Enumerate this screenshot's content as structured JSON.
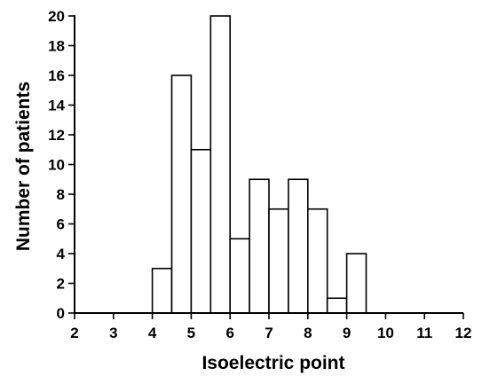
{
  "chart_data": {
    "type": "bar",
    "title": "",
    "xlabel": "Isoelectric point",
    "ylabel": "Number of patients",
    "xlim": [
      2,
      12
    ],
    "ylim": [
      0,
      20
    ],
    "x_ticks": [
      2,
      3,
      4,
      5,
      6,
      7,
      8,
      9,
      10,
      11,
      12
    ],
    "y_ticks": [
      0,
      2,
      4,
      6,
      8,
      10,
      12,
      14,
      16,
      18,
      20
    ],
    "bin_width": 0.5,
    "bins": [
      {
        "start": 4.0,
        "end": 4.5,
        "value": 3
      },
      {
        "start": 4.5,
        "end": 5.0,
        "value": 16
      },
      {
        "start": 5.0,
        "end": 5.5,
        "value": 11
      },
      {
        "start": 5.5,
        "end": 6.0,
        "value": 20
      },
      {
        "start": 6.0,
        "end": 6.5,
        "value": 5
      },
      {
        "start": 6.5,
        "end": 7.0,
        "value": 9
      },
      {
        "start": 7.0,
        "end": 7.5,
        "value": 7
      },
      {
        "start": 7.5,
        "end": 8.0,
        "value": 9
      },
      {
        "start": 8.0,
        "end": 8.5,
        "value": 7
      },
      {
        "start": 8.5,
        "end": 9.0,
        "value": 1
      },
      {
        "start": 9.0,
        "end": 9.5,
        "value": 4
      }
    ],
    "grid": false,
    "legend": "none"
  }
}
